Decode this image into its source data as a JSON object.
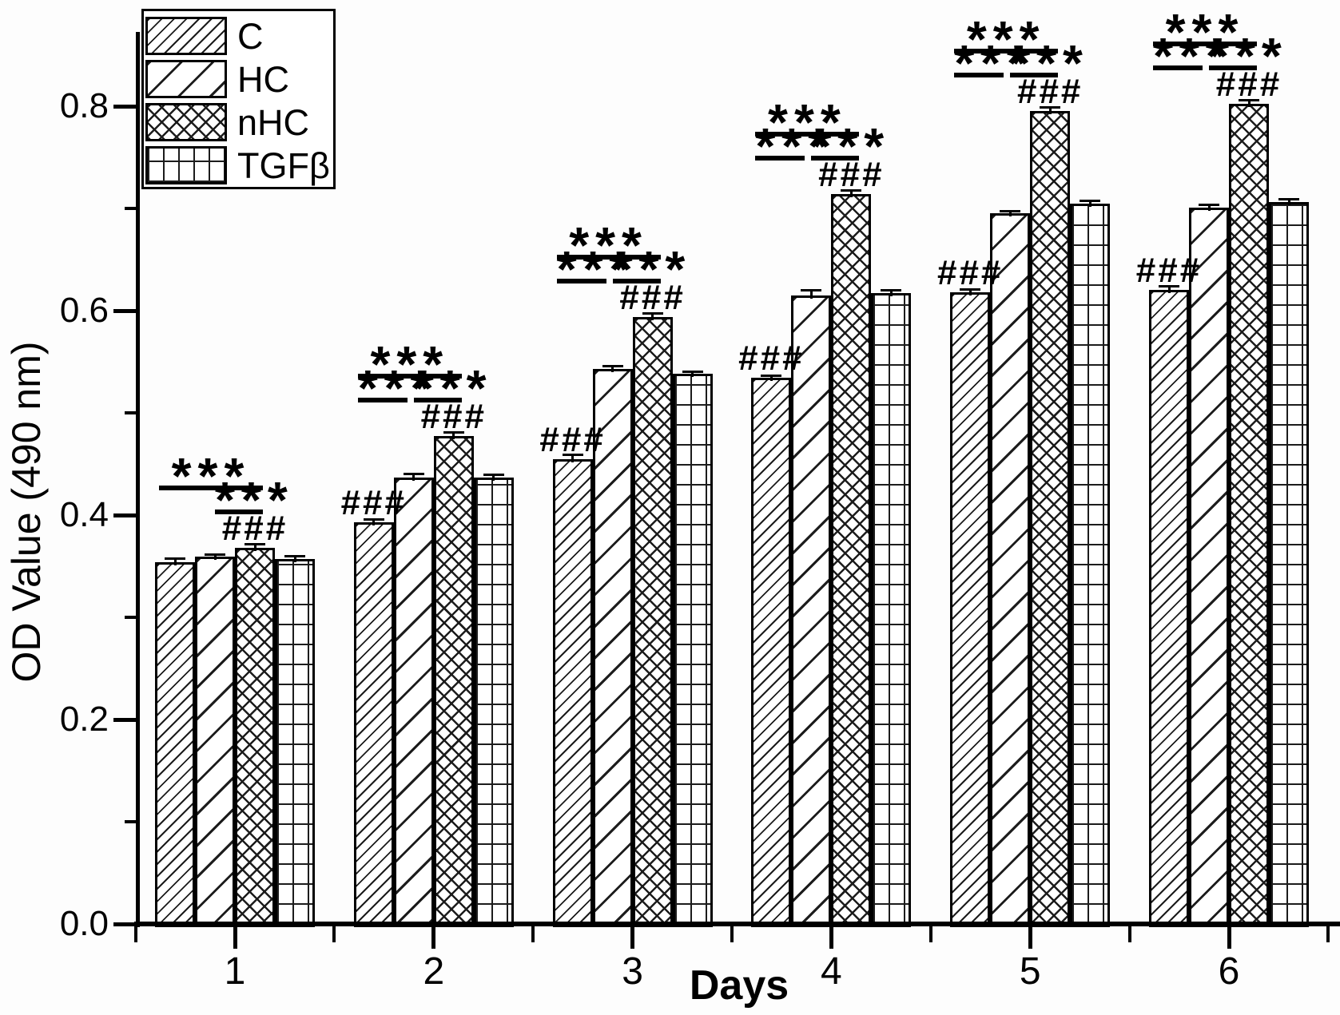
{
  "figure": {
    "background": "#ffffff",
    "ink": "#000000"
  },
  "chart_data": {
    "type": "bar",
    "title": "",
    "xlabel": "Days",
    "ylabel": "OD Value (490 nm)",
    "categories": [
      "1",
      "2",
      "3",
      "4",
      "5",
      "6"
    ],
    "series": [
      {
        "name": "C",
        "hatch": "diagonal-dense",
        "values": [
          0.354,
          0.393,
          0.455,
          0.534,
          0.618,
          0.62
        ],
        "errors": [
          0.004,
          0.003,
          0.004,
          0.003,
          0.003,
          0.004
        ]
      },
      {
        "name": "HC",
        "hatch": "diagonal-wide",
        "values": [
          0.359,
          0.437,
          0.543,
          0.615,
          0.695,
          0.701
        ],
        "errors": [
          0.003,
          0.004,
          0.003,
          0.005,
          0.003,
          0.003
        ]
      },
      {
        "name": "nHC",
        "hatch": "crosshatch",
        "values": [
          0.368,
          0.477,
          0.594,
          0.714,
          0.795,
          0.802
        ],
        "errors": [
          0.004,
          0.004,
          0.004,
          0.004,
          0.004,
          0.004
        ]
      },
      {
        "name": "TGFβ",
        "hatch": "grid",
        "values": [
          0.357,
          0.437,
          0.538,
          0.617,
          0.705,
          0.706
        ],
        "errors": [
          0.003,
          0.003,
          0.003,
          0.003,
          0.003,
          0.003
        ]
      }
    ],
    "ylim": [
      0,
      0.88
    ],
    "yticks": {
      "major": [
        0.0,
        0.2,
        0.4,
        0.6,
        0.8
      ],
      "major_labels": [
        "0.0",
        "0.2",
        "0.4",
        "0.6",
        "0.8"
      ],
      "minor": [
        0.1,
        0.3,
        0.5,
        0.7
      ]
    },
    "grid": false,
    "legend": {
      "position": "top-left",
      "entries": [
        "C",
        "HC",
        "nHC",
        "TGFβ"
      ]
    },
    "significance": [
      {
        "day": "1",
        "c_vs_nhc": "***",
        "c_vs_hc": null,
        "hc_vs_nhc": "***",
        "hash_c": null,
        "hash_nhc": "###"
      },
      {
        "day": "2",
        "c_vs_nhc": "***",
        "c_vs_hc": "***",
        "hc_vs_nhc": "***",
        "hash_c": "###",
        "hash_nhc": "###"
      },
      {
        "day": "3",
        "c_vs_nhc": "***",
        "c_vs_hc": "***",
        "hc_vs_nhc": "***",
        "hash_c": "###",
        "hash_nhc": "###"
      },
      {
        "day": "4",
        "c_vs_nhc": "***",
        "c_vs_hc": "***",
        "hc_vs_nhc": "***",
        "hash_c": "###",
        "hash_nhc": "###"
      },
      {
        "day": "5",
        "c_vs_nhc": "***",
        "c_vs_hc": "***",
        "hc_vs_nhc": "***",
        "hash_c": "###",
        "hash_nhc": "###"
      },
      {
        "day": "6",
        "c_vs_nhc": "***",
        "c_vs_hc": "***",
        "hc_vs_nhc": "***",
        "hash_c": "###",
        "hash_nhc": "###"
      }
    ]
  }
}
